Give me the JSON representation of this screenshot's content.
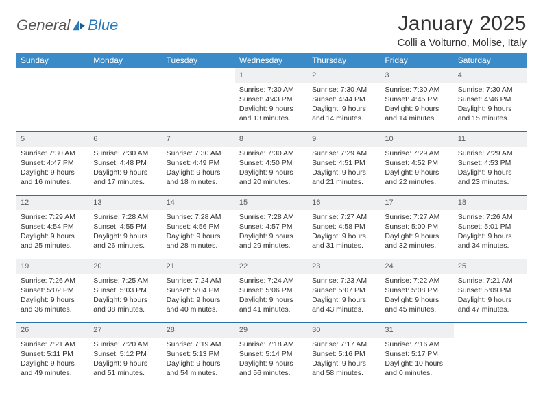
{
  "brand": {
    "word1": "General",
    "word2": "Blue"
  },
  "title": "January 2025",
  "location": "Colli a Volturno, Molise, Italy",
  "colors": {
    "header_bg": "#3b8bc9",
    "row_border": "#2a6fa5",
    "daynum_bg": "#eef0f1",
    "text": "#333333",
    "logo_blue": "#2a7ab9"
  },
  "weekdays": [
    "Sunday",
    "Monday",
    "Tuesday",
    "Wednesday",
    "Thursday",
    "Friday",
    "Saturday"
  ],
  "weeks": [
    [
      {
        "empty": true
      },
      {
        "empty": true
      },
      {
        "empty": true
      },
      {
        "num": "1",
        "sunrise": "Sunrise: 7:30 AM",
        "sunset": "Sunset: 4:43 PM",
        "day1": "Daylight: 9 hours",
        "day2": "and 13 minutes."
      },
      {
        "num": "2",
        "sunrise": "Sunrise: 7:30 AM",
        "sunset": "Sunset: 4:44 PM",
        "day1": "Daylight: 9 hours",
        "day2": "and 14 minutes."
      },
      {
        "num": "3",
        "sunrise": "Sunrise: 7:30 AM",
        "sunset": "Sunset: 4:45 PM",
        "day1": "Daylight: 9 hours",
        "day2": "and 14 minutes."
      },
      {
        "num": "4",
        "sunrise": "Sunrise: 7:30 AM",
        "sunset": "Sunset: 4:46 PM",
        "day1": "Daylight: 9 hours",
        "day2": "and 15 minutes."
      }
    ],
    [
      {
        "num": "5",
        "sunrise": "Sunrise: 7:30 AM",
        "sunset": "Sunset: 4:47 PM",
        "day1": "Daylight: 9 hours",
        "day2": "and 16 minutes."
      },
      {
        "num": "6",
        "sunrise": "Sunrise: 7:30 AM",
        "sunset": "Sunset: 4:48 PM",
        "day1": "Daylight: 9 hours",
        "day2": "and 17 minutes."
      },
      {
        "num": "7",
        "sunrise": "Sunrise: 7:30 AM",
        "sunset": "Sunset: 4:49 PM",
        "day1": "Daylight: 9 hours",
        "day2": "and 18 minutes."
      },
      {
        "num": "8",
        "sunrise": "Sunrise: 7:30 AM",
        "sunset": "Sunset: 4:50 PM",
        "day1": "Daylight: 9 hours",
        "day2": "and 20 minutes."
      },
      {
        "num": "9",
        "sunrise": "Sunrise: 7:29 AM",
        "sunset": "Sunset: 4:51 PM",
        "day1": "Daylight: 9 hours",
        "day2": "and 21 minutes."
      },
      {
        "num": "10",
        "sunrise": "Sunrise: 7:29 AM",
        "sunset": "Sunset: 4:52 PM",
        "day1": "Daylight: 9 hours",
        "day2": "and 22 minutes."
      },
      {
        "num": "11",
        "sunrise": "Sunrise: 7:29 AM",
        "sunset": "Sunset: 4:53 PM",
        "day1": "Daylight: 9 hours",
        "day2": "and 23 minutes."
      }
    ],
    [
      {
        "num": "12",
        "sunrise": "Sunrise: 7:29 AM",
        "sunset": "Sunset: 4:54 PM",
        "day1": "Daylight: 9 hours",
        "day2": "and 25 minutes."
      },
      {
        "num": "13",
        "sunrise": "Sunrise: 7:28 AM",
        "sunset": "Sunset: 4:55 PM",
        "day1": "Daylight: 9 hours",
        "day2": "and 26 minutes."
      },
      {
        "num": "14",
        "sunrise": "Sunrise: 7:28 AM",
        "sunset": "Sunset: 4:56 PM",
        "day1": "Daylight: 9 hours",
        "day2": "and 28 minutes."
      },
      {
        "num": "15",
        "sunrise": "Sunrise: 7:28 AM",
        "sunset": "Sunset: 4:57 PM",
        "day1": "Daylight: 9 hours",
        "day2": "and 29 minutes."
      },
      {
        "num": "16",
        "sunrise": "Sunrise: 7:27 AM",
        "sunset": "Sunset: 4:58 PM",
        "day1": "Daylight: 9 hours",
        "day2": "and 31 minutes."
      },
      {
        "num": "17",
        "sunrise": "Sunrise: 7:27 AM",
        "sunset": "Sunset: 5:00 PM",
        "day1": "Daylight: 9 hours",
        "day2": "and 32 minutes."
      },
      {
        "num": "18",
        "sunrise": "Sunrise: 7:26 AM",
        "sunset": "Sunset: 5:01 PM",
        "day1": "Daylight: 9 hours",
        "day2": "and 34 minutes."
      }
    ],
    [
      {
        "num": "19",
        "sunrise": "Sunrise: 7:26 AM",
        "sunset": "Sunset: 5:02 PM",
        "day1": "Daylight: 9 hours",
        "day2": "and 36 minutes."
      },
      {
        "num": "20",
        "sunrise": "Sunrise: 7:25 AM",
        "sunset": "Sunset: 5:03 PM",
        "day1": "Daylight: 9 hours",
        "day2": "and 38 minutes."
      },
      {
        "num": "21",
        "sunrise": "Sunrise: 7:24 AM",
        "sunset": "Sunset: 5:04 PM",
        "day1": "Daylight: 9 hours",
        "day2": "and 40 minutes."
      },
      {
        "num": "22",
        "sunrise": "Sunrise: 7:24 AM",
        "sunset": "Sunset: 5:06 PM",
        "day1": "Daylight: 9 hours",
        "day2": "and 41 minutes."
      },
      {
        "num": "23",
        "sunrise": "Sunrise: 7:23 AM",
        "sunset": "Sunset: 5:07 PM",
        "day1": "Daylight: 9 hours",
        "day2": "and 43 minutes."
      },
      {
        "num": "24",
        "sunrise": "Sunrise: 7:22 AM",
        "sunset": "Sunset: 5:08 PM",
        "day1": "Daylight: 9 hours",
        "day2": "and 45 minutes."
      },
      {
        "num": "25",
        "sunrise": "Sunrise: 7:21 AM",
        "sunset": "Sunset: 5:09 PM",
        "day1": "Daylight: 9 hours",
        "day2": "and 47 minutes."
      }
    ],
    [
      {
        "num": "26",
        "sunrise": "Sunrise: 7:21 AM",
        "sunset": "Sunset: 5:11 PM",
        "day1": "Daylight: 9 hours",
        "day2": "and 49 minutes."
      },
      {
        "num": "27",
        "sunrise": "Sunrise: 7:20 AM",
        "sunset": "Sunset: 5:12 PM",
        "day1": "Daylight: 9 hours",
        "day2": "and 51 minutes."
      },
      {
        "num": "28",
        "sunrise": "Sunrise: 7:19 AM",
        "sunset": "Sunset: 5:13 PM",
        "day1": "Daylight: 9 hours",
        "day2": "and 54 minutes."
      },
      {
        "num": "29",
        "sunrise": "Sunrise: 7:18 AM",
        "sunset": "Sunset: 5:14 PM",
        "day1": "Daylight: 9 hours",
        "day2": "and 56 minutes."
      },
      {
        "num": "30",
        "sunrise": "Sunrise: 7:17 AM",
        "sunset": "Sunset: 5:16 PM",
        "day1": "Daylight: 9 hours",
        "day2": "and 58 minutes."
      },
      {
        "num": "31",
        "sunrise": "Sunrise: 7:16 AM",
        "sunset": "Sunset: 5:17 PM",
        "day1": "Daylight: 10 hours",
        "day2": "and 0 minutes."
      },
      {
        "empty": true
      }
    ]
  ]
}
